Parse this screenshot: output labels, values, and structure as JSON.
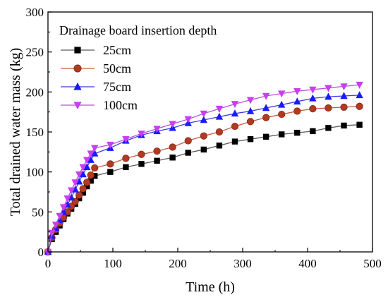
{
  "chart_data": {
    "type": "line",
    "title": "",
    "xlabel": "Time (h)",
    "ylabel": "Total drained water mass (kg)",
    "xlim": [
      0,
      500
    ],
    "ylim": [
      0,
      300
    ],
    "xticks": [
      0,
      100,
      200,
      300,
      400,
      500
    ],
    "yticks": [
      0,
      50,
      100,
      150,
      200,
      250,
      300
    ],
    "grid": false,
    "legend": {
      "title": "Drainage board insertion depth",
      "placement": "top-left"
    },
    "series": [
      {
        "name": "25cm",
        "color": "#000000",
        "line_color": "#5a5a5a",
        "marker": "square",
        "x": [
          0,
          6,
          12,
          18,
          24,
          30,
          36,
          42,
          48,
          54,
          60,
          66,
          72,
          96,
          120,
          144,
          168,
          192,
          216,
          240,
          264,
          288,
          312,
          336,
          360,
          384,
          408,
          432,
          456,
          480
        ],
        "y": [
          0,
          16,
          25,
          33,
          41,
          48,
          54,
          60,
          67,
          74,
          82,
          89,
          95,
          100,
          106,
          110,
          114,
          118,
          124,
          128,
          133,
          138,
          141,
          144,
          147,
          149,
          151,
          155,
          158,
          159
        ]
      },
      {
        "name": "50cm",
        "color": "#b03a22",
        "line_color": "#c75a42",
        "marker": "circle",
        "x": [
          0,
          6,
          12,
          18,
          24,
          30,
          36,
          42,
          48,
          54,
          60,
          66,
          72,
          96,
          120,
          144,
          168,
          192,
          216,
          240,
          264,
          288,
          312,
          336,
          360,
          384,
          408,
          432,
          456,
          480
        ],
        "y": [
          0,
          18,
          28,
          36,
          43,
          50,
          57,
          63,
          71,
          79,
          87,
          96,
          105,
          110,
          117,
          122,
          126,
          131,
          139,
          145,
          150,
          157,
          163,
          168,
          172,
          176,
          179,
          180,
          181,
          182
        ]
      },
      {
        "name": "75cm",
        "color": "#1a1aff",
        "line_color": "#3b3bd9",
        "marker": "triangle-up",
        "x": [
          0,
          6,
          12,
          18,
          24,
          30,
          36,
          42,
          48,
          54,
          60,
          66,
          72,
          96,
          120,
          144,
          168,
          192,
          216,
          240,
          264,
          288,
          312,
          336,
          360,
          384,
          408,
          432,
          456,
          480
        ],
        "y": [
          0,
          20,
          30,
          40,
          50,
          59,
          68,
          78,
          88,
          97,
          106,
          115,
          123,
          130,
          139,
          146,
          151,
          155,
          161,
          165,
          169,
          173,
          176,
          180,
          184,
          188,
          192,
          194,
          195,
          196
        ]
      },
      {
        "name": "100cm",
        "color": "#c83ef0",
        "line_color": "#b84fd8",
        "marker": "triangle-down",
        "x": [
          0,
          6,
          12,
          18,
          24,
          30,
          36,
          42,
          48,
          54,
          60,
          66,
          72,
          96,
          120,
          144,
          168,
          192,
          216,
          240,
          264,
          288,
          312,
          336,
          360,
          384,
          408,
          432,
          456,
          480
        ],
        "y": [
          0,
          24,
          34,
          45,
          56,
          67,
          77,
          87,
          97,
          106,
          115,
          123,
          130,
          134,
          141,
          148,
          154,
          160,
          166,
          173,
          179,
          185,
          190,
          195,
          198,
          201,
          203,
          205,
          207,
          209
        ]
      }
    ]
  }
}
